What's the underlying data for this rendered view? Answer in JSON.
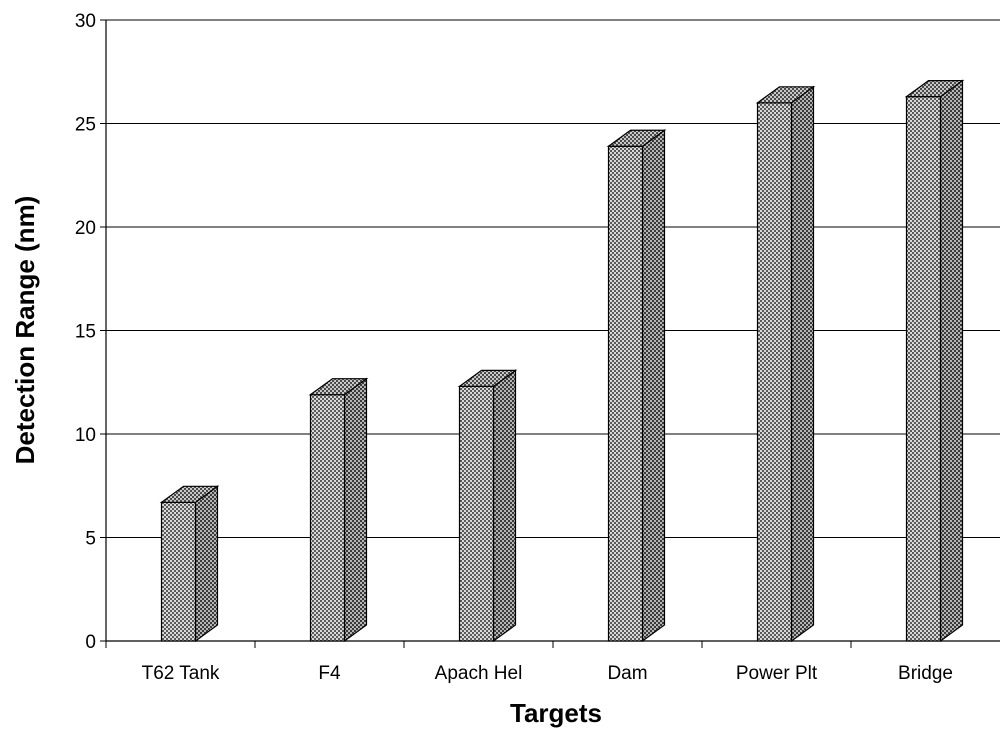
{
  "chart_data": {
    "type": "bar",
    "title": "",
    "xlabel": "Targets",
    "ylabel": "Detection Range (nm)",
    "categories": [
      "T62 Tank",
      "F4",
      "Apach Hel",
      "Dam",
      "Power Plt",
      "Bridge"
    ],
    "values": [
      6.7,
      11.9,
      12.3,
      23.9,
      26.0,
      26.3
    ],
    "ylim": [
      0,
      30
    ],
    "yticks": [
      "0",
      "5",
      "10",
      "15",
      "20",
      "25",
      "30"
    ],
    "grid": true,
    "legend": "none",
    "style": "3d-column",
    "colors": {
      "bar_face": "#b8b8b8",
      "bar_side": "#8f8f8f",
      "bar_top": "#a6a6a6",
      "grid": "#000000"
    }
  }
}
